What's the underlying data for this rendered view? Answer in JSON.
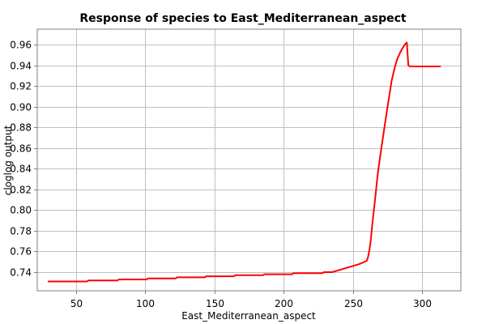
{
  "chart_data": {
    "type": "line",
    "title": "Response of species to East_Mediterranean_aspect",
    "xlabel": "East_Mediterranean_aspect",
    "ylabel": "cloglog output",
    "xlim": [
      22,
      328
    ],
    "ylim": [
      0.722,
      0.975
    ],
    "grid": true,
    "x_ticks": [
      50,
      100,
      150,
      200,
      250,
      300
    ],
    "y_ticks": [
      0.74,
      0.76,
      0.78,
      0.8,
      0.82,
      0.84,
      0.86,
      0.88,
      0.9,
      0.92,
      0.94,
      0.96
    ],
    "y_tick_labels": [
      "0.74",
      "0.76",
      "0.78",
      "0.80",
      "0.82",
      "0.84",
      "0.86",
      "0.88",
      "0.90",
      "0.92",
      "0.94",
      "0.96"
    ],
    "series": [
      {
        "color": "#ff0000",
        "x": [
          30,
          58,
          59,
          80,
          81,
          101,
          102,
          122,
          123,
          143,
          144,
          164,
          165,
          185,
          186,
          206,
          207,
          228,
          229,
          235,
          245,
          255,
          260,
          261,
          262,
          263,
          264,
          266,
          268,
          270,
          272,
          274,
          276,
          278,
          280,
          282,
          284,
          286,
          288,
          289,
          290,
          291,
          300,
          313
        ],
        "values": [
          0.731,
          0.731,
          0.732,
          0.732,
          0.733,
          0.733,
          0.734,
          0.734,
          0.735,
          0.735,
          0.736,
          0.736,
          0.737,
          0.737,
          0.738,
          0.738,
          0.739,
          0.739,
          0.74,
          0.74,
          0.744,
          0.748,
          0.751,
          0.755,
          0.762,
          0.772,
          0.786,
          0.81,
          0.836,
          0.855,
          0.873,
          0.891,
          0.908,
          0.925,
          0.937,
          0.946,
          0.952,
          0.957,
          0.961,
          0.962,
          0.94,
          0.939,
          0.939,
          0.939
        ]
      }
    ]
  }
}
